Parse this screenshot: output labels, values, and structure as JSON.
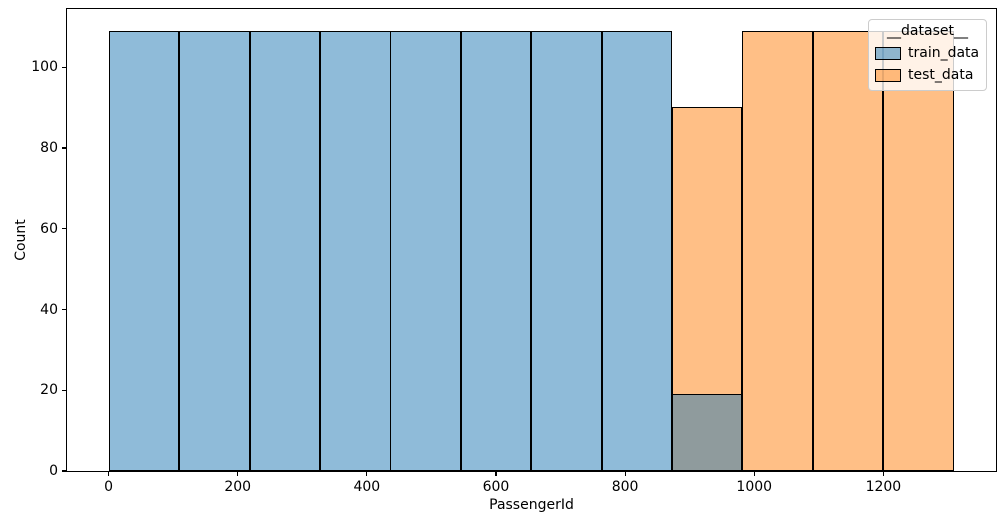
{
  "chart_data": {
    "type": "bar",
    "variant": "histogram",
    "title": "",
    "xlabel": "PassengerId",
    "ylabel": "Count",
    "bin_edges": [
      1,
      110,
      219,
      328,
      437,
      546,
      655,
      764,
      873,
      982,
      1091,
      1200,
      1309
    ],
    "series": [
      {
        "name": "train_data",
        "color": "#1f77b4",
        "alpha": 0.5,
        "edgecolor": "#000000",
        "rendered_fill": "#8fbbd9",
        "counts": [
          109,
          109,
          109,
          109,
          109,
          109,
          109,
          109,
          19,
          0,
          0,
          0
        ]
      },
      {
        "name": "test_data",
        "color": "#ff7f0e",
        "alpha": 0.5,
        "edgecolor": "#000000",
        "rendered_fill": "#ffbf86",
        "counts": [
          0,
          0,
          0,
          0,
          0,
          0,
          0,
          0,
          90,
          109,
          109,
          109
        ]
      }
    ],
    "overlap_rendered_color": "#8f9b9d",
    "draw_order": [
      "test_data",
      "train_data"
    ],
    "x_ticks": [
      0,
      200,
      400,
      600,
      800,
      1000,
      1200
    ],
    "y_ticks": [
      0,
      20,
      40,
      60,
      80,
      100
    ],
    "xlim": [
      -64.4,
      1374.4
    ],
    "ylim": [
      0,
      114.45
    ],
    "grid": false,
    "legend": {
      "title": "__dataset__",
      "position": "upper right",
      "entries": [
        "train_data",
        "test_data"
      ]
    }
  }
}
